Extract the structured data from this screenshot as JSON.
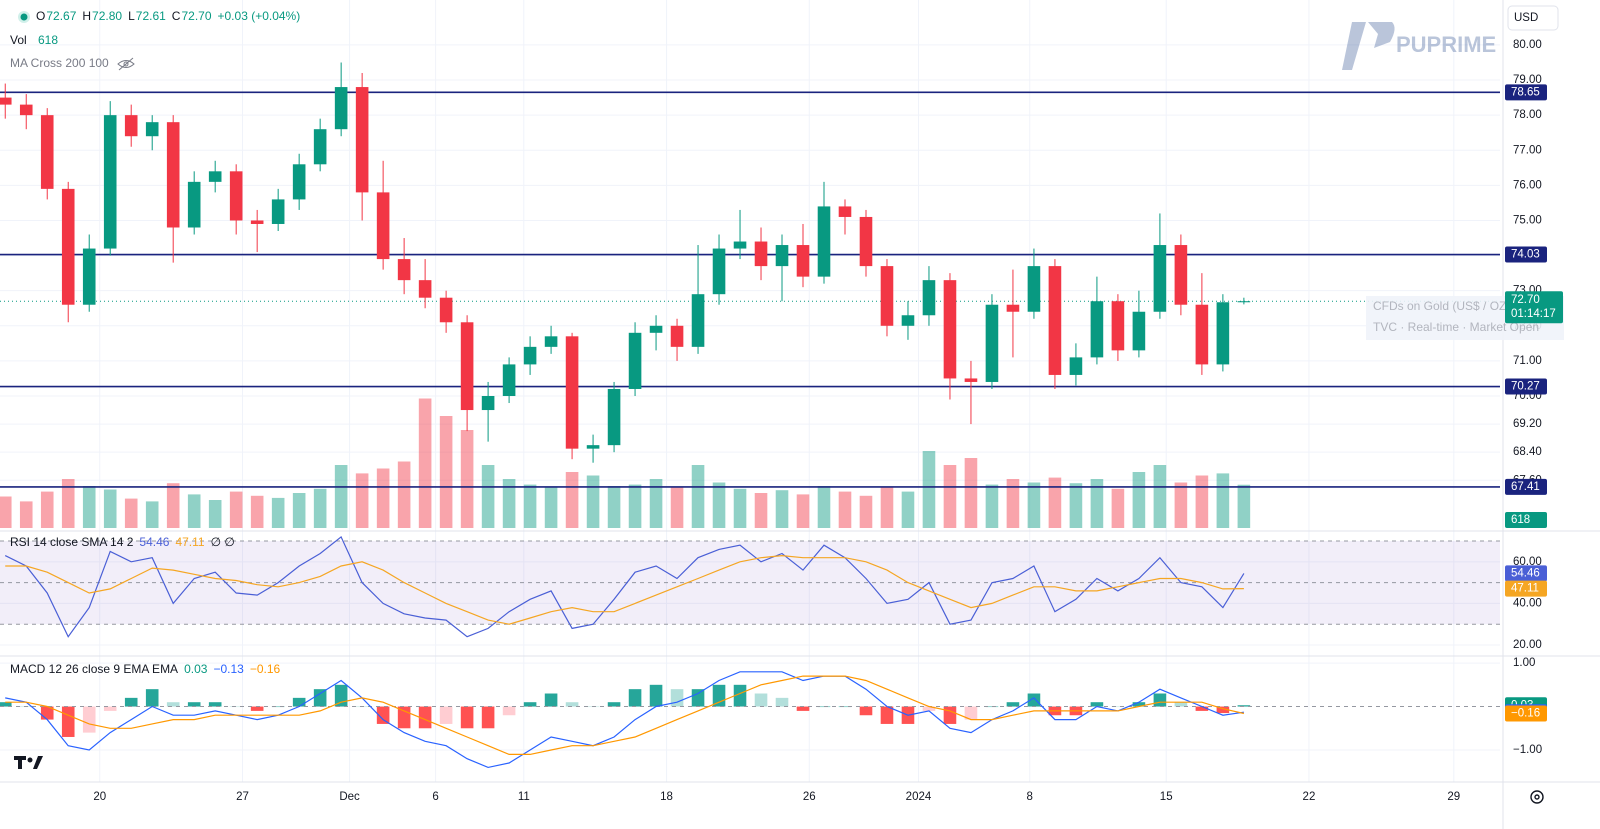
{
  "chart_data": {
    "type": "candlestick",
    "header": {
      "ohlc": [
        [
          "O",
          "72.67"
        ],
        [
          "H",
          "72.80"
        ],
        [
          "L",
          "72.61"
        ],
        [
          "C",
          "72.70"
        ]
      ],
      "change": "+0.03 (+0.04%)",
      "vol_label": "Vol",
      "vol_value": "618",
      "ma_label": "MA Cross 200 100"
    },
    "currency": "USD",
    "watermark": "PUPRIME",
    "info": [
      "CFDs on Gold (US$ / OZ)",
      "TVC · Real-time · Market Open"
    ],
    "up_color": "#089981",
    "down_color": "#f23645",
    "open": [
      78.5,
      78.3,
      78.0,
      75.9,
      72.6,
      74.2,
      78.0,
      77.4,
      77.8,
      74.8,
      76.1,
      76.4,
      75.0,
      74.9,
      75.6,
      76.6,
      77.6,
      78.8,
      75.8,
      73.9,
      73.3,
      72.8,
      72.1,
      69.6,
      70.0,
      70.9,
      71.4,
      71.7,
      68.5,
      68.6,
      70.2,
      71.8,
      72.0,
      71.4,
      72.9,
      74.2,
      74.4,
      73.7,
      74.3,
      73.4,
      75.4,
      75.1,
      73.7,
      72.0,
      72.3,
      73.3,
      70.5,
      70.4,
      72.6,
      72.4,
      73.7,
      70.6,
      71.1,
      72.7,
      71.3,
      72.4,
      74.3,
      72.6,
      70.9,
      72.67
    ],
    "high": [
      78.9,
      78.6,
      78.2,
      76.1,
      74.6,
      78.4,
      78.3,
      78.0,
      78.0,
      76.4,
      76.7,
      76.6,
      75.3,
      75.9,
      76.9,
      77.9,
      79.5,
      79.2,
      76.7,
      74.5,
      73.9,
      73.0,
      72.3,
      70.4,
      71.1,
      71.7,
      72.0,
      71.8,
      68.9,
      70.4,
      72.1,
      72.3,
      72.2,
      74.3,
      74.6,
      75.3,
      74.8,
      74.6,
      74.9,
      76.1,
      75.6,
      75.3,
      73.9,
      72.7,
      73.7,
      73.5,
      71.0,
      72.9,
      73.6,
      74.2,
      73.9,
      71.5,
      73.4,
      72.9,
      73.0,
      75.2,
      74.6,
      73.5,
      72.9,
      72.8
    ],
    "low": [
      77.9,
      77.6,
      75.6,
      72.1,
      72.4,
      74.0,
      77.1,
      77.0,
      73.8,
      74.6,
      75.8,
      74.6,
      74.1,
      74.7,
      75.3,
      76.4,
      77.4,
      75.0,
      73.6,
      72.9,
      72.5,
      71.8,
      69.0,
      68.7,
      69.8,
      70.6,
      71.2,
      68.2,
      68.1,
      68.4,
      70.0,
      71.3,
      71.0,
      71.2,
      72.6,
      73.9,
      73.3,
      72.7,
      73.1,
      73.2,
      74.6,
      73.4,
      71.7,
      71.6,
      72.0,
      69.9,
      69.2,
      70.2,
      71.1,
      72.2,
      70.2,
      70.3,
      70.9,
      71.0,
      71.1,
      72.2,
      72.3,
      70.6,
      70.7,
      72.61
    ],
    "close": [
      78.3,
      78.0,
      75.9,
      72.6,
      74.2,
      78.0,
      77.4,
      77.8,
      74.8,
      76.1,
      76.4,
      75.0,
      74.9,
      75.6,
      76.6,
      77.6,
      78.8,
      75.8,
      73.9,
      73.3,
      72.8,
      72.1,
      69.6,
      70.0,
      70.9,
      71.4,
      71.7,
      68.5,
      68.6,
      70.2,
      71.8,
      72.0,
      71.4,
      72.9,
      74.2,
      74.4,
      73.7,
      74.3,
      73.4,
      75.4,
      75.1,
      73.7,
      72.0,
      72.3,
      73.3,
      70.5,
      70.4,
      72.6,
      72.4,
      73.7,
      70.6,
      71.1,
      72.7,
      71.3,
      72.4,
      74.3,
      72.6,
      70.9,
      72.67,
      72.7
    ],
    "xlim": [
      -0.25,
      71.2
    ],
    "xticks": [
      {
        "value": 4.5,
        "label": "20"
      },
      {
        "value": 11.3,
        "label": "27"
      },
      {
        "value": 16.4,
        "label": "Dec"
      },
      {
        "value": 20.5,
        "label": "6"
      },
      {
        "value": 24.7,
        "label": "11"
      },
      {
        "value": 31.5,
        "label": "18"
      },
      {
        "value": 38.3,
        "label": "26"
      },
      {
        "value": 43.5,
        "label": "2024"
      },
      {
        "value": 48.8,
        "label": "8"
      },
      {
        "value": 55.3,
        "label": "15"
      },
      {
        "value": 62.1,
        "label": "22"
      },
      {
        "value": 69.0,
        "label": "29"
      }
    ],
    "ylim": [
      66.24,
      81.28
    ],
    "yticks": [
      {
        "value": 80,
        "label": "80.00"
      },
      {
        "value": 79,
        "label": "79.00"
      },
      {
        "value": 78,
        "label": "78.00"
      },
      {
        "value": 77,
        "label": "77.00"
      },
      {
        "value": 76,
        "label": "76.00"
      },
      {
        "value": 75,
        "label": "75.00"
      },
      {
        "value": 74,
        "label": "74.00"
      },
      {
        "value": 73,
        "label": "73.00"
      },
      {
        "value": 72,
        "label": "72.00"
      },
      {
        "value": 71,
        "label": "71.00"
      },
      {
        "value": 70,
        "label": "70.00"
      },
      {
        "value": 69.2,
        "label": "69.20"
      },
      {
        "value": 68.4,
        "label": "68.40"
      },
      {
        "value": 67.6,
        "label": "67.60"
      }
    ],
    "grid": true,
    "levels": [
      78.65,
      74.03,
      70.27,
      67.41
    ],
    "level_color": "#1a237e",
    "last_price": {
      "value": 72.7,
      "label": "72.70"
    },
    "countdown": "01:14:17",
    "volume": {
      "values": [
        450,
        380,
        520,
        700,
        600,
        550,
        420,
        380,
        640,
        480,
        400,
        520,
        460,
        430,
        500,
        560,
        900,
        780,
        850,
        950,
        1850,
        1600,
        1400,
        900,
        700,
        620,
        580,
        800,
        750,
        600,
        620,
        700,
        580,
        900,
        650,
        560,
        500,
        540,
        480,
        600,
        520,
        460,
        580,
        520,
        1100,
        900,
        1000,
        620,
        700,
        650,
        720,
        640,
        700,
        560,
        800,
        900,
        650,
        750,
        780,
        618
      ],
      "ylim": [
        0,
        2400
      ],
      "last": 618
    },
    "rsi": {
      "title": "RSI 14 close SMA 14 2",
      "extra": "∅ ∅",
      "series": [
        {
          "name": "RSI",
          "color": "#4a5fd6",
          "values": [
            63,
            58,
            45,
            24,
            38,
            65,
            60,
            62,
            40,
            52,
            55,
            45,
            44,
            50,
            58,
            64,
            72,
            50,
            40,
            35,
            33,
            32,
            24,
            28,
            36,
            42,
            46,
            28,
            30,
            42,
            55,
            58,
            52,
            62,
            66,
            68,
            60,
            64,
            56,
            68,
            62,
            52,
            40,
            42,
            50,
            30,
            32,
            50,
            52,
            58,
            36,
            42,
            52,
            46,
            52,
            62,
            50,
            48,
            38,
            54.46
          ],
          "last": 54.46
        },
        {
          "name": "SMA",
          "color": "#f5a623",
          "values": [
            58,
            58,
            55,
            50,
            45,
            47,
            52,
            57,
            56,
            54,
            52,
            51,
            49,
            48,
            50,
            53,
            58,
            60,
            56,
            50,
            45,
            40,
            36,
            32,
            30,
            33,
            36,
            38,
            36,
            36,
            40,
            44,
            48,
            52,
            56,
            60,
            62,
            63,
            62,
            62,
            62,
            60,
            56,
            50,
            46,
            42,
            38,
            40,
            44,
            48,
            48,
            46,
            46,
            48,
            50,
            52,
            52,
            50,
            47,
            47.11
          ],
          "last": 47.11
        }
      ],
      "bands": [
        70,
        50,
        30
      ],
      "ylim": [
        15.2,
        72.9
      ],
      "yticks": [
        {
          "value": 60,
          "label": "60.00"
        },
        {
          "value": 40,
          "label": "40.00"
        },
        {
          "value": 20,
          "label": "20.00"
        }
      ]
    },
    "macd": {
      "title": "MACD 12 26 close 9 EMA EMA",
      "histogram": {
        "values": [
          0.1,
          0,
          -0.3,
          -0.7,
          -0.6,
          -0.1,
          0.2,
          0.4,
          0.1,
          0.1,
          0.1,
          0,
          -0.1,
          0,
          0.2,
          0.4,
          0.5,
          0,
          -0.4,
          -0.5,
          -0.5,
          -0.4,
          -0.5,
          -0.5,
          -0.2,
          0.1,
          0.3,
          0.1,
          0,
          0.1,
          0.4,
          0.5,
          0.4,
          0.4,
          0.5,
          0.5,
          0.3,
          0.2,
          -0.1,
          0,
          0,
          -0.2,
          -0.4,
          -0.4,
          -0.1,
          -0.4,
          -0.3,
          0,
          0.1,
          0.3,
          -0.2,
          -0.2,
          0.1,
          0,
          0.1,
          0.3,
          0.1,
          -0.1,
          -0.15,
          0.03
        ],
        "last": {
          "value": 0.03,
          "label": "0.03"
        },
        "color": "#089981"
      },
      "series": [
        {
          "name": "MACD",
          "color": "#2962ff",
          "values": [
            0.2,
            0.1,
            -0.3,
            -0.9,
            -1.0,
            -0.6,
            -0.3,
            0.0,
            -0.2,
            -0.2,
            -0.1,
            -0.2,
            -0.3,
            -0.2,
            0.0,
            0.3,
            0.6,
            0.2,
            -0.3,
            -0.6,
            -0.8,
            -0.9,
            -1.2,
            -1.4,
            -1.3,
            -1.0,
            -0.7,
            -0.8,
            -0.9,
            -0.7,
            -0.3,
            0.0,
            0.1,
            0.3,
            0.6,
            0.8,
            0.8,
            0.8,
            0.6,
            0.7,
            0.7,
            0.4,
            0.0,
            -0.2,
            -0.1,
            -0.5,
            -0.6,
            -0.3,
            -0.1,
            0.2,
            -0.3,
            -0.3,
            0.0,
            -0.1,
            0.1,
            0.4,
            0.2,
            0.0,
            -0.2,
            -0.13
          ],
          "last": {
            "value": -0.13,
            "label": "−0.13"
          }
        },
        {
          "name": "Signal",
          "color": "#ff9800",
          "values": [
            0.1,
            0.1,
            0.0,
            -0.2,
            -0.4,
            -0.5,
            -0.5,
            -0.4,
            -0.3,
            -0.3,
            -0.2,
            -0.2,
            -0.2,
            -0.2,
            -0.2,
            -0.1,
            0.1,
            0.2,
            0.1,
            -0.1,
            -0.3,
            -0.5,
            -0.7,
            -0.9,
            -1.1,
            -1.1,
            -1.0,
            -0.9,
            -0.9,
            -0.8,
            -0.7,
            -0.5,
            -0.3,
            -0.1,
            0.1,
            0.3,
            0.5,
            0.6,
            0.7,
            0.7,
            0.7,
            0.6,
            0.4,
            0.2,
            0.0,
            -0.1,
            -0.3,
            -0.3,
            -0.2,
            -0.1,
            -0.1,
            -0.1,
            -0.1,
            -0.1,
            0.0,
            0.1,
            0.1,
            0.1,
            -0.05,
            -0.16
          ],
          "last": {
            "value": -0.16,
            "label": "−0.16"
          }
        }
      ],
      "ylim": [
        -1.69,
        1.14
      ],
      "yticks": [
        {
          "value": 1,
          "label": "1.00"
        },
        {
          "value": -1,
          "label": "−1.00"
        }
      ]
    }
  }
}
